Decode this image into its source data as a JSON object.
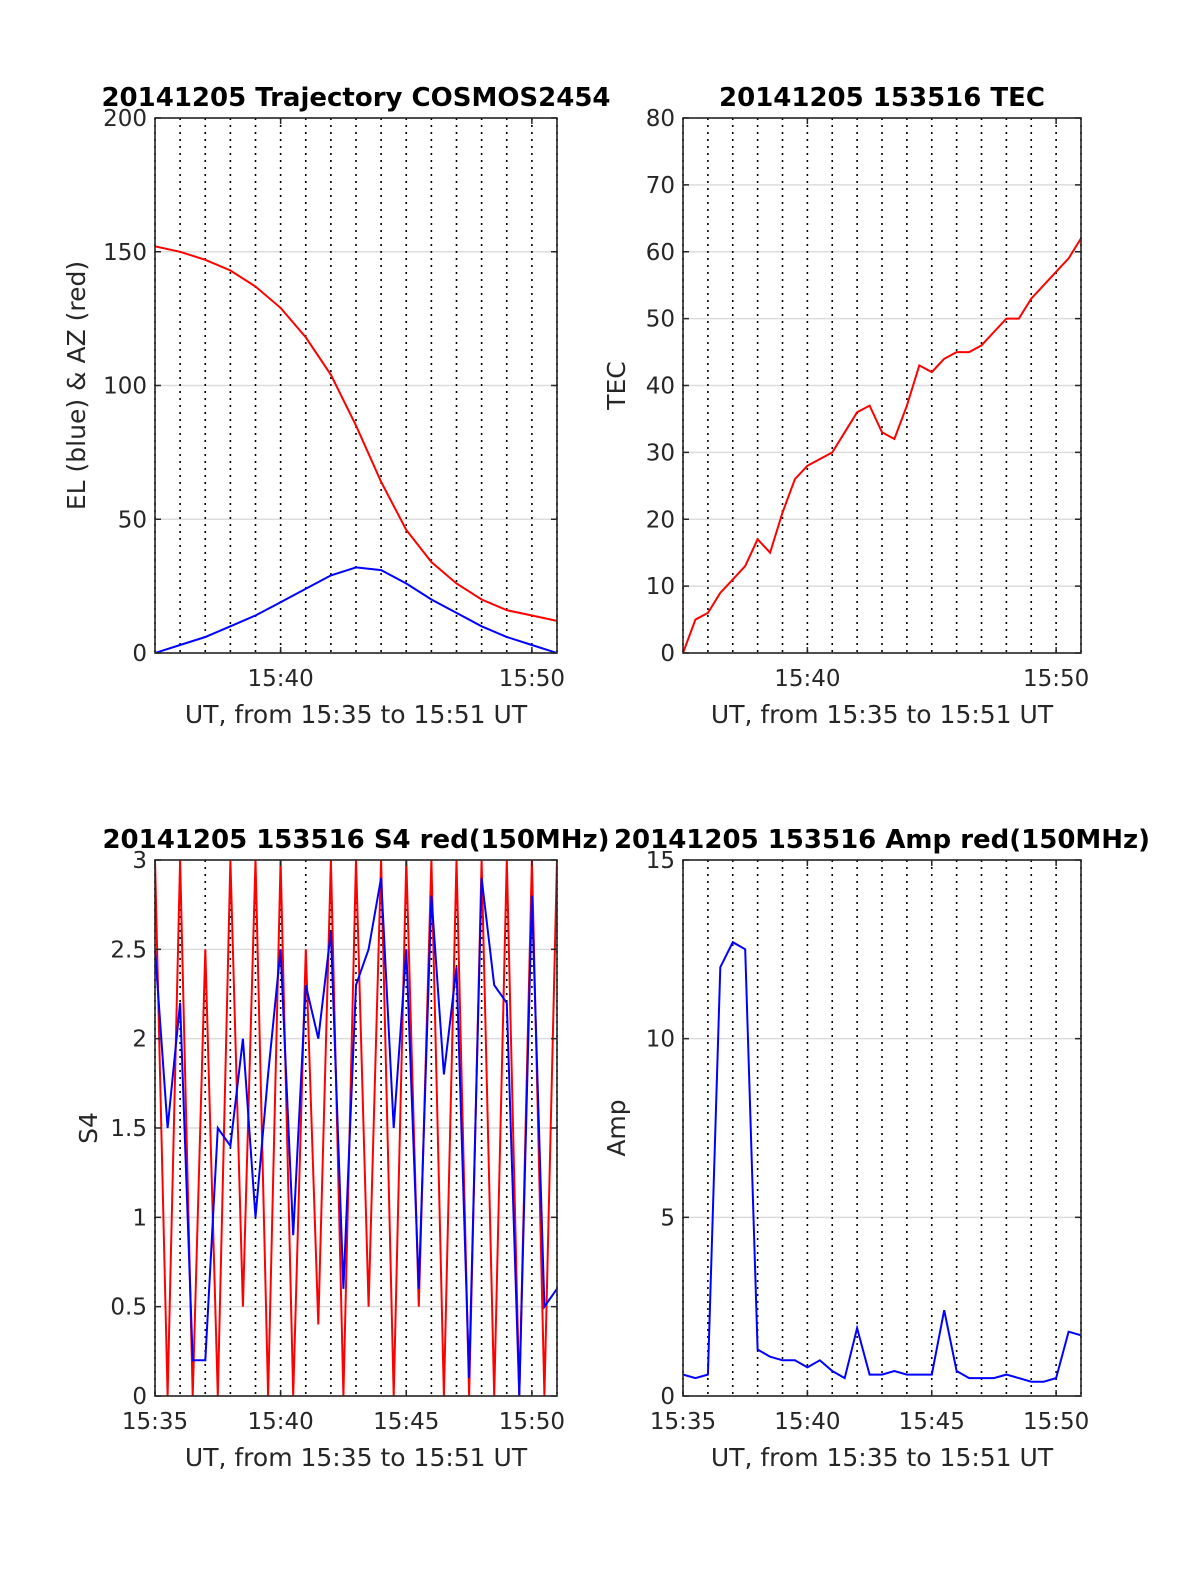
{
  "chart_data": [
    {
      "id": "trajectory",
      "type": "line",
      "title": "20141205 Trajectory COSMOS2454",
      "xlabel": "UT, from 15:35 to 15:51 UT",
      "ylabel": "EL (blue) & AZ (red)",
      "xlim": [
        "15:35",
        "15:51"
      ],
      "ylim": [
        0,
        200
      ],
      "xticks": [
        "15:40",
        "15:50"
      ],
      "yticks": [
        0,
        50,
        100,
        150,
        200
      ],
      "grid": true,
      "series": [
        {
          "color": "#ff0000",
          "x": [
            "15:35",
            "15:36",
            "15:37",
            "15:38",
            "15:39",
            "15:40",
            "15:41",
            "15:42",
            "15:43",
            "15:44",
            "15:45",
            "15:46",
            "15:47",
            "15:48",
            "15:49",
            "15:50",
            "15:51"
          ],
          "y": [
            152,
            150,
            147,
            143,
            137,
            129,
            118,
            104,
            85,
            64,
            46,
            34,
            26,
            20,
            16,
            14,
            12
          ]
        },
        {
          "color": "#0000ff",
          "x": [
            "15:35",
            "15:36",
            "15:37",
            "15:38",
            "15:39",
            "15:40",
            "15:41",
            "15:42",
            "15:43",
            "15:44",
            "15:45",
            "15:46",
            "15:47",
            "15:48",
            "15:49",
            "15:50",
            "15:51"
          ],
          "y": [
            0,
            3,
            6,
            10,
            14,
            19,
            24,
            29,
            32,
            31,
            26,
            20,
            15,
            10,
            6,
            3,
            0
          ]
        }
      ]
    },
    {
      "id": "tec",
      "type": "line",
      "title": "20141205 153516 TEC",
      "xlabel": "UT, from 15:35 to 15:51 UT",
      "ylabel": "TEC",
      "xlim": [
        "15:35",
        "15:51"
      ],
      "ylim": [
        0,
        80
      ],
      "xticks": [
        "15:40",
        "15:50"
      ],
      "yticks": [
        0,
        10,
        20,
        30,
        40,
        50,
        60,
        70,
        80
      ],
      "grid": true,
      "series": [
        {
          "color": "#ff0000",
          "x": [
            "15:35",
            "15:35:30",
            "15:36",
            "15:36:30",
            "15:37",
            "15:37:30",
            "15:38",
            "15:38:30",
            "15:39",
            "15:39:30",
            "15:40",
            "15:40:30",
            "15:41",
            "15:41:30",
            "15:42",
            "15:42:30",
            "15:43",
            "15:43:30",
            "15:44",
            "15:44:30",
            "15:45",
            "15:45:30",
            "15:46",
            "15:46:30",
            "15:47",
            "15:47:30",
            "15:48",
            "15:48:30",
            "15:49",
            "15:49:30",
            "15:50",
            "15:50:30",
            "15:51"
          ],
          "y": [
            0,
            5,
            6,
            9,
            11,
            13,
            17,
            15,
            21,
            26,
            28,
            29,
            30,
            33,
            36,
            37,
            33,
            32,
            37,
            43,
            42,
            44,
            45,
            45,
            46,
            48,
            50,
            50,
            53,
            55,
            57,
            59,
            62
          ]
        }
      ]
    },
    {
      "id": "s4",
      "type": "line",
      "title": "20141205 153516 S4 red(150MHz)",
      "xlabel": "UT, from 15:35 to 15:51 UT",
      "ylabel": "S4",
      "xlim": [
        "15:35",
        "15:51"
      ],
      "ylim": [
        0,
        3
      ],
      "xticks": [
        "15:35",
        "15:40",
        "15:45",
        "15:50"
      ],
      "yticks": [
        "0",
        "0.5",
        "1",
        "1.5",
        "2",
        "2.5",
        "3"
      ],
      "grid": true,
      "series": [
        {
          "color": "#ff0000",
          "x": [
            "15:35",
            "15:35:30",
            "15:36",
            "15:36:30",
            "15:37",
            "15:37:30",
            "15:38",
            "15:38:30",
            "15:39",
            "15:39:30",
            "15:40",
            "15:40:30",
            "15:41",
            "15:41:30",
            "15:42",
            "15:42:30",
            "15:43",
            "15:43:30",
            "15:44",
            "15:44:30",
            "15:45",
            "15:45:30",
            "15:46",
            "15:46:30",
            "15:47",
            "15:47:30",
            "15:48",
            "15:48:30",
            "15:49",
            "15:49:30",
            "15:50",
            "15:50:30",
            "15:51"
          ],
          "y": [
            3,
            0,
            3,
            0,
            2.5,
            0,
            3,
            0.5,
            3,
            0,
            3,
            0,
            2.5,
            0.4,
            3,
            0,
            3,
            0.5,
            3,
            0,
            3,
            0.5,
            3,
            0,
            3,
            0,
            3,
            0,
            3,
            0,
            3,
            0,
            3
          ]
        },
        {
          "color": "#0000ff",
          "x": [
            "15:35",
            "15:35:30",
            "15:36",
            "15:36:30",
            "15:37",
            "15:37:30",
            "15:38",
            "15:38:30",
            "15:39",
            "15:39:30",
            "15:40",
            "15:40:30",
            "15:41",
            "15:41:30",
            "15:42",
            "15:42:30",
            "15:43",
            "15:43:30",
            "15:44",
            "15:44:30",
            "15:45",
            "15:45:30",
            "15:46",
            "15:46:30",
            "15:47",
            "15:47:30",
            "15:48",
            "15:48:30",
            "15:49",
            "15:49:30",
            "15:50",
            "15:50:30",
            "15:51"
          ],
          "y": [
            2.5,
            1.5,
            2.2,
            0.2,
            0.2,
            1.5,
            1.4,
            2.0,
            1.0,
            1.8,
            2.5,
            0.9,
            2.3,
            2.0,
            2.6,
            0.6,
            2.3,
            2.5,
            2.9,
            1.5,
            2.5,
            0.6,
            2.8,
            1.8,
            2.4,
            0.1,
            2.9,
            2.3,
            2.2,
            0.0,
            2.8,
            0.5,
            0.6
          ]
        }
      ]
    },
    {
      "id": "amp",
      "type": "line",
      "title": "20141205 153516 Amp red(150MHz)",
      "xlabel": "UT, from 15:35 to 15:51 UT",
      "ylabel": "Amp",
      "xlim": [
        "15:35",
        "15:51"
      ],
      "ylim": [
        0,
        15
      ],
      "xticks": [
        "15:35",
        "15:40",
        "15:45",
        "15:50"
      ],
      "yticks": [
        0,
        5,
        10,
        15
      ],
      "grid": true,
      "series": [
        {
          "color": "#0000ff",
          "x": [
            "15:35",
            "15:35:30",
            "15:36",
            "15:36:30",
            "15:37",
            "15:37:30",
            "15:38",
            "15:38:30",
            "15:39",
            "15:39:30",
            "15:40",
            "15:40:30",
            "15:41",
            "15:41:30",
            "15:42",
            "15:42:30",
            "15:43",
            "15:43:30",
            "15:44",
            "15:44:30",
            "15:45",
            "15:45:30",
            "15:46",
            "15:46:30",
            "15:47",
            "15:47:30",
            "15:48",
            "15:48:30",
            "15:49",
            "15:49:30",
            "15:50",
            "15:50:30",
            "15:51"
          ],
          "y": [
            0.6,
            0.5,
            0.6,
            12.0,
            12.7,
            12.5,
            1.3,
            1.1,
            1.0,
            1.0,
            0.8,
            1.0,
            0.7,
            0.5,
            1.9,
            0.6,
            0.6,
            0.7,
            0.6,
            0.6,
            0.6,
            2.4,
            0.7,
            0.5,
            0.5,
            0.5,
            0.6,
            0.5,
            0.4,
            0.4,
            0.5,
            1.8,
            1.7
          ]
        }
      ]
    }
  ]
}
